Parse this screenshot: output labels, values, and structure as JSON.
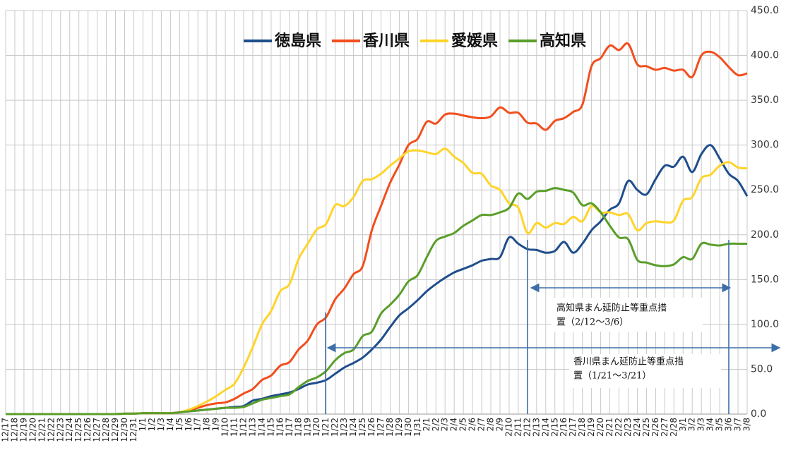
{
  "chart_data": {
    "type": "line",
    "categories": [
      "12/17",
      "12/18",
      "12/19",
      "12/20",
      "12/21",
      "12/22",
      "12/23",
      "12/24",
      "12/25",
      "12/26",
      "12/27",
      "12/28",
      "12/29",
      "12/30",
      "12/31",
      "1/1",
      "1/2",
      "1/3",
      "1/4",
      "1/5",
      "1/6",
      "1/7",
      "1/8",
      "1/9",
      "1/10",
      "1/11",
      "1/12",
      "1/13",
      "1/14",
      "1/15",
      "1/16",
      "1/17",
      "1/18",
      "1/19",
      "1/20",
      "1/21",
      "1/22",
      "1/23",
      "1/24",
      "1/25",
      "1/26",
      "1/27",
      "1/28",
      "1/29",
      "1/30",
      "1/31",
      "2/1",
      "2/2",
      "2/3",
      "2/4",
      "2/5",
      "2/6",
      "2/7",
      "2/8",
      "2/9",
      "2/10",
      "2/11",
      "2/12",
      "2/13",
      "2/14",
      "2/15",
      "2/16",
      "2/17",
      "2/18",
      "2/19",
      "2/20",
      "2/21",
      "2/22",
      "2/23",
      "2/24",
      "2/25",
      "2/26",
      "2/27",
      "2/28",
      "3/1",
      "3/2",
      "3/3",
      "3/4",
      "3/5",
      "3/6",
      "3/7",
      "3/8"
    ],
    "series": [
      {
        "name": "徳島県",
        "color": "#1f4e8c",
        "values": [
          0,
          0,
          0,
          0,
          0,
          0,
          0,
          0,
          0,
          0,
          0,
          0,
          0,
          0.5,
          0.5,
          1,
          1,
          1,
          1,
          2,
          3,
          4,
          5,
          6,
          7,
          8,
          9,
          15,
          17,
          20,
          22,
          24,
          28,
          33,
          35,
          38,
          45,
          52,
          57,
          63,
          72,
          83,
          97,
          110,
          118,
          127,
          137,
          145,
          152,
          158,
          162,
          166,
          171,
          173,
          175,
          197,
          190,
          184,
          183,
          180,
          182,
          192,
          180,
          190,
          205,
          215,
          228,
          235,
          260,
          250,
          245,
          262,
          277,
          276,
          287,
          270,
          290,
          300,
          285,
          268,
          260,
          243
        ]
      },
      {
        "name": "香川県",
        "color": "#f24e1e",
        "values": [
          0,
          0,
          0,
          0,
          0,
          0,
          0,
          0,
          0,
          0,
          0,
          0,
          0,
          0.5,
          0.5,
          1,
          1,
          1,
          1,
          2,
          4,
          7,
          10,
          12,
          13,
          17,
          23,
          28,
          38,
          43,
          54,
          58,
          72,
          82,
          100,
          108,
          128,
          140,
          156,
          165,
          205,
          232,
          258,
          278,
          300,
          307,
          326,
          324,
          334,
          335,
          333,
          331,
          330,
          332,
          342,
          336,
          336,
          325,
          324,
          317,
          327,
          330,
          337,
          345,
          388,
          397,
          411,
          406,
          413,
          390,
          388,
          384,
          386,
          383,
          384,
          376,
          400,
          404,
          398,
          387,
          378,
          380
        ]
      },
      {
        "name": "愛媛県",
        "color": "#ffd42a",
        "values": [
          0,
          0,
          0,
          0,
          0,
          0,
          0,
          0,
          0,
          0,
          0,
          0,
          0,
          0.5,
          0.5,
          1,
          1,
          1,
          1,
          2,
          5,
          9,
          14,
          20,
          27,
          34,
          52,
          75,
          100,
          115,
          137,
          145,
          173,
          190,
          206,
          212,
          233,
          232,
          242,
          260,
          262,
          268,
          277,
          285,
          293,
          294,
          292,
          290,
          296,
          287,
          280,
          269,
          268,
          255,
          250,
          235,
          230,
          202,
          213,
          208,
          213,
          212,
          220,
          215,
          232,
          225,
          225,
          222,
          223,
          205,
          213,
          215,
          214,
          216,
          238,
          242,
          263,
          267,
          277,
          281,
          275,
          274
        ]
      },
      {
        "name": "高知県",
        "color": "#5a9e2a",
        "values": [
          0,
          0,
          0,
          0,
          0,
          0,
          0,
          0,
          0,
          0,
          0,
          0,
          0,
          0.5,
          0.5,
          1,
          1,
          1,
          1,
          2,
          3,
          4,
          5,
          6,
          7,
          7,
          8,
          12,
          16,
          18,
          20,
          22,
          30,
          37,
          41,
          48,
          60,
          68,
          72,
          87,
          92,
          112,
          122,
          133,
          148,
          155,
          175,
          193,
          198,
          202,
          210,
          216,
          222,
          222,
          225,
          230,
          246,
          240,
          248,
          249,
          252,
          250,
          247,
          233,
          235,
          225,
          210,
          197,
          195,
          172,
          169,
          166,
          165,
          167,
          175,
          173,
          190,
          189,
          188,
          190,
          190,
          190
        ]
      }
    ],
    "ylim": [
      0,
      450
    ],
    "yticks": [
      {
        "value": 0,
        "label": "0.0"
      },
      {
        "value": 50,
        "label": "50.0"
      },
      {
        "value": 100,
        "label": "100.0"
      },
      {
        "value": 150,
        "label": "150.0"
      },
      {
        "value": 200,
        "label": "200.0"
      },
      {
        "value": 250,
        "label": "250.0"
      },
      {
        "value": 300,
        "label": "300.0"
      },
      {
        "value": 350,
        "label": "350.0"
      },
      {
        "value": 400,
        "label": "400.0"
      },
      {
        "value": 450,
        "label": "450.0"
      }
    ],
    "grid": true,
    "annotations": [
      {
        "text": [
          "高知県まん延防止等重点措",
          "置（2/12〜3/6）"
        ]
      },
      {
        "text": [
          "香川県まん延防止等重点措",
          "置（1/21〜3/21）"
        ]
      }
    ]
  }
}
